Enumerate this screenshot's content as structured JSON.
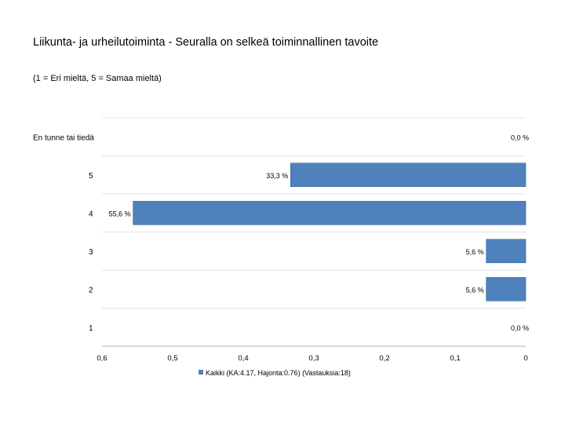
{
  "chart_data": {
    "type": "bar",
    "orientation": "horizontal",
    "title": "Liikunta- ja urheilutoiminta - Seuralla on selkeä toiminnallinen tavoite",
    "subtitle": "(1 = Eri mieltä, 5 = Samaa mieltä)",
    "categories": [
      "En tunne tai tiedä",
      "5",
      "4",
      "3",
      "2",
      "1"
    ],
    "series": [
      {
        "name": "Kaikki (KA:4.17, Hajonta:0.76) (Vastauksia:18)",
        "values": [
          0.0,
          0.333,
          0.556,
          0.056,
          0.056,
          0.0
        ],
        "labels": [
          "0,0 %",
          "33,3 %",
          "55,6 %",
          "5,6 %",
          "5,6 %",
          "0,0 %"
        ]
      }
    ],
    "xlim": [
      0.6,
      0
    ],
    "xticks": [
      "0,6",
      "0,5",
      "0,4",
      "0,3",
      "0,2",
      "0,1",
      "0"
    ],
    "xtick_values": [
      0.6,
      0.5,
      0.4,
      0.3,
      0.2,
      0.1,
      0
    ],
    "grid": true,
    "legend": "bottom",
    "color": "#4f81bd"
  }
}
